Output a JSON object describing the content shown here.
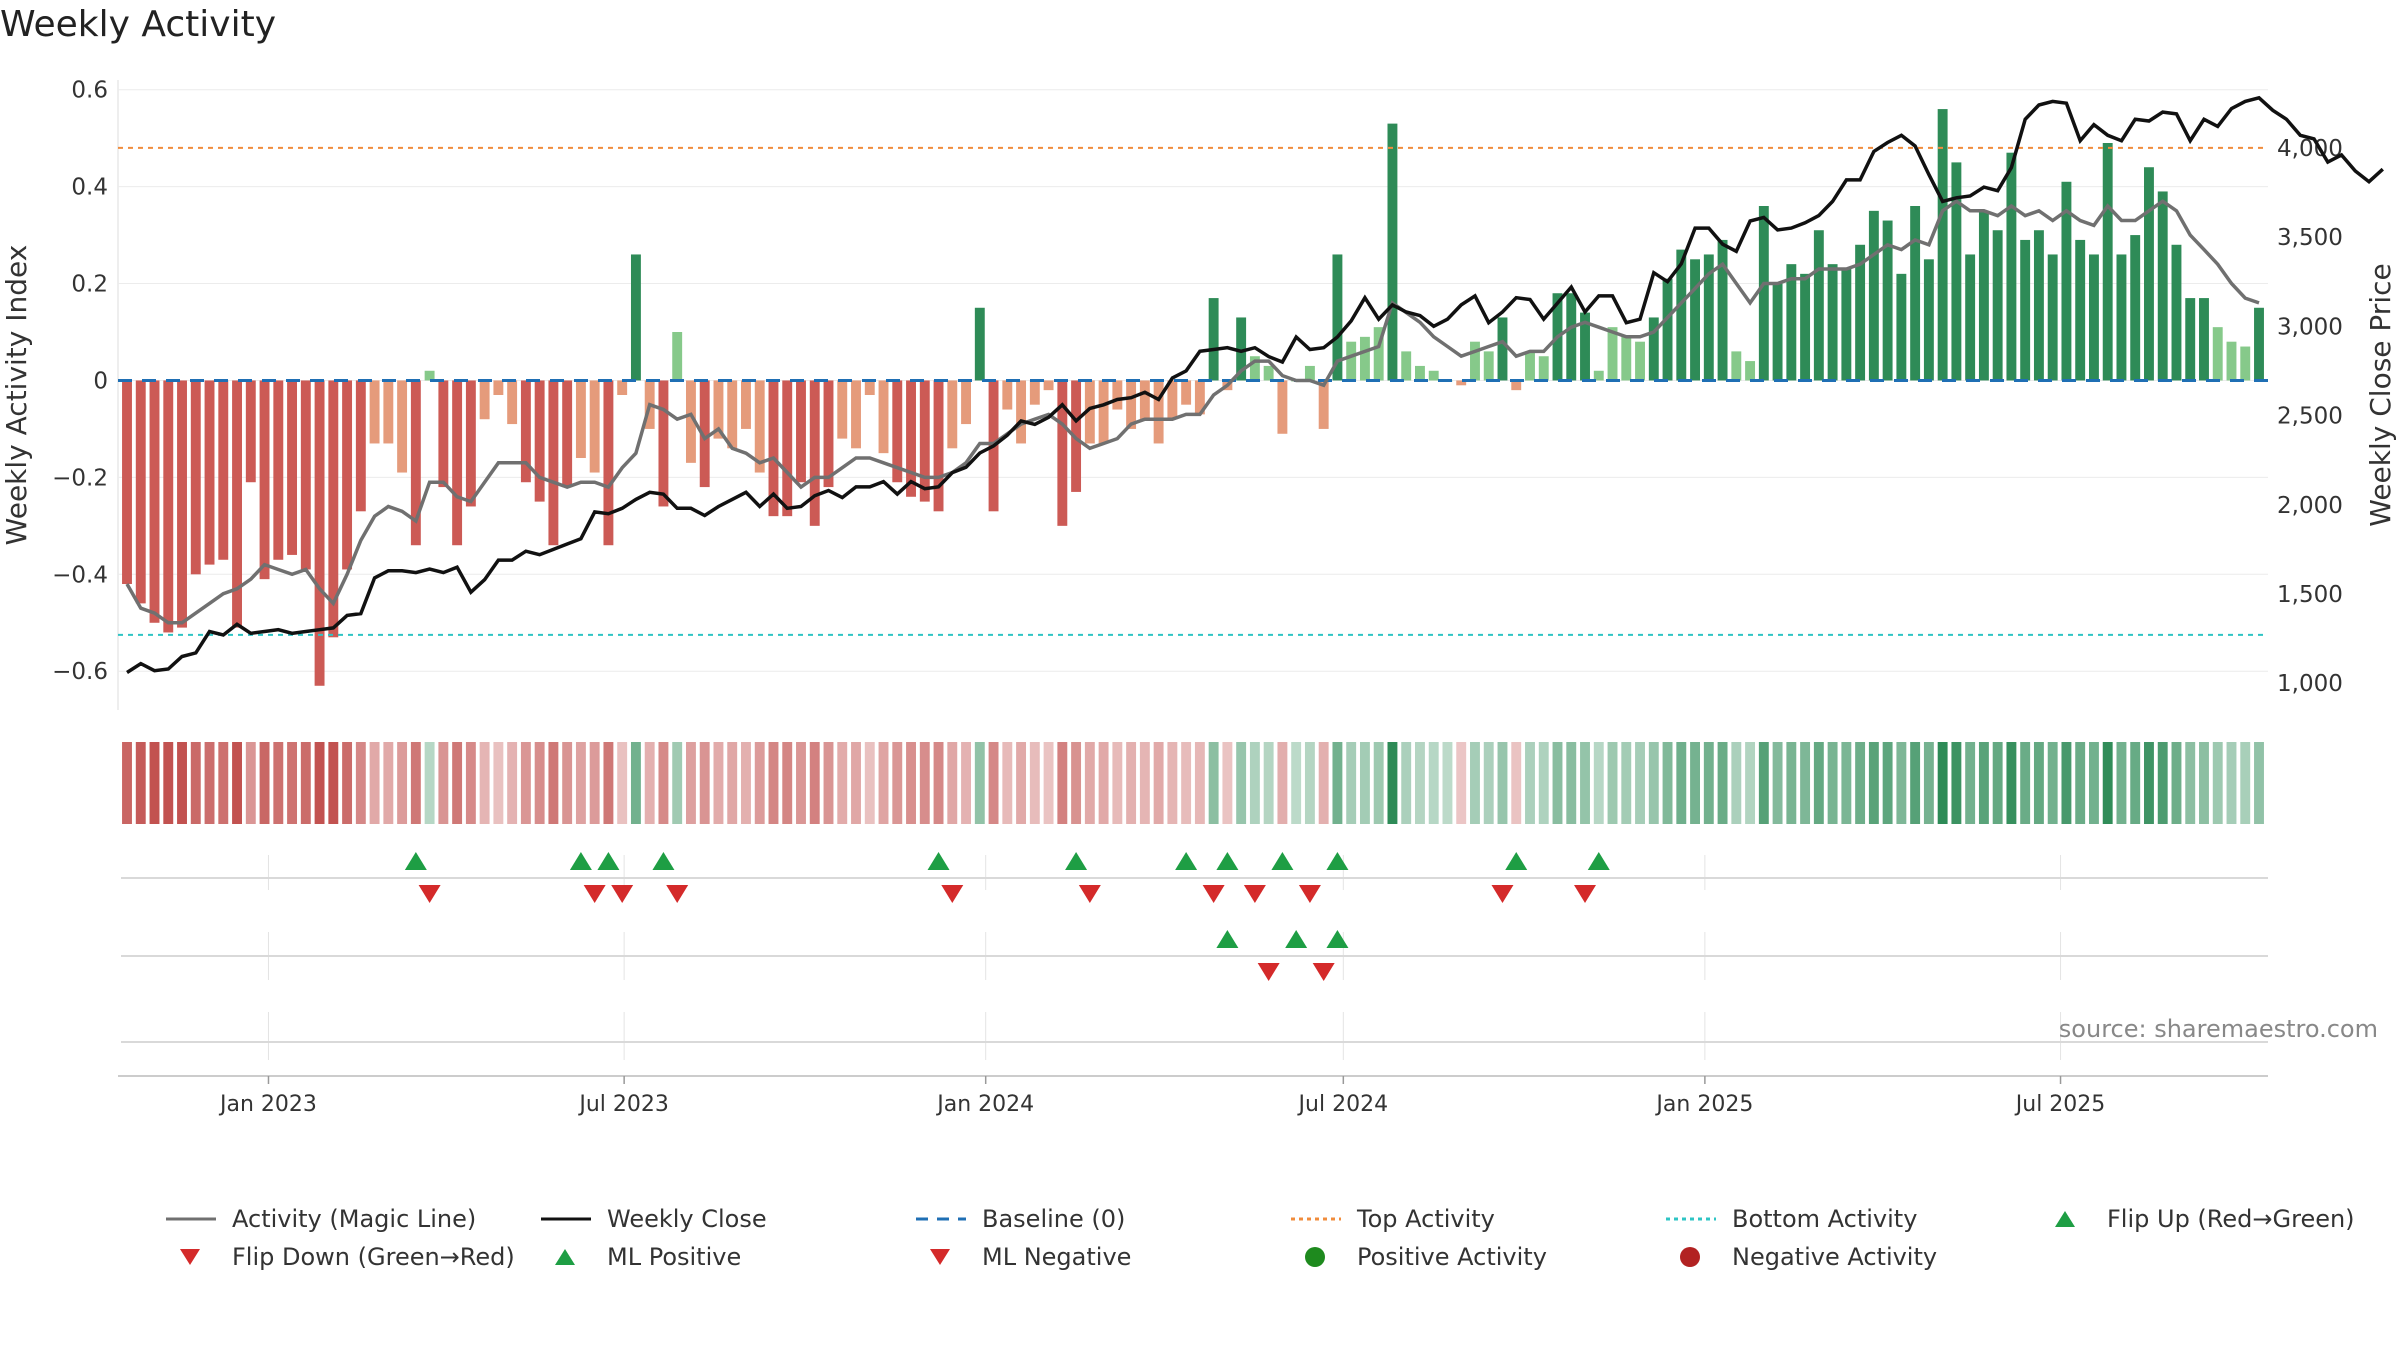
{
  "chart_data": {
    "type": "bar",
    "title": "Weekly Activity",
    "ylabel_left": "Weekly Activity Index",
    "ylabel_right": "Weekly Close Price",
    "xlabel": "",
    "x_start": "2022-10-21",
    "x_step_days": 7,
    "ylim_left": [
      -0.68,
      0.62
    ],
    "yticks_left": [
      -0.6,
      -0.4,
      -0.2,
      0,
      0.2,
      0.4,
      0.6
    ],
    "ylim_right": [
      850,
      4380
    ],
    "yticks_right": [
      1000,
      1500,
      2000,
      2500,
      3000,
      3500,
      4000
    ],
    "xticks": [
      {
        "date": "2023-01-01",
        "label": "Jan 2023"
      },
      {
        "date": "2023-07-01",
        "label": "Jul 2023"
      },
      {
        "date": "2024-01-01",
        "label": "Jan 2024"
      },
      {
        "date": "2024-07-01",
        "label": "Jul 2024"
      },
      {
        "date": "2025-01-01",
        "label": "Jan 2025"
      },
      {
        "date": "2025-07-01",
        "label": "Jul 2025"
      }
    ],
    "activity": [
      -0.42,
      -0.46,
      -0.5,
      -0.52,
      -0.51,
      -0.4,
      -0.38,
      -0.37,
      -0.51,
      -0.21,
      -0.41,
      -0.37,
      -0.36,
      -0.39,
      -0.63,
      -0.53,
      -0.39,
      -0.27,
      -0.13,
      -0.13,
      -0.19,
      -0.34,
      0.02,
      -0.22,
      -0.34,
      -0.26,
      -0.08,
      -0.03,
      -0.09,
      -0.21,
      -0.25,
      -0.34,
      -0.22,
      -0.16,
      -0.19,
      -0.34,
      -0.03,
      0.26,
      -0.1,
      -0.26,
      0.1,
      -0.17,
      -0.22,
      -0.12,
      -0.14,
      -0.1,
      -0.19,
      -0.28,
      -0.28,
      -0.21,
      -0.3,
      -0.22,
      -0.12,
      -0.14,
      -0.03,
      -0.15,
      -0.21,
      -0.24,
      -0.25,
      -0.27,
      -0.14,
      -0.09,
      0.15,
      -0.27,
      -0.06,
      -0.13,
      -0.05,
      -0.02,
      -0.3,
      -0.23,
      -0.13,
      -0.13,
      -0.06,
      -0.1,
      -0.08,
      -0.13,
      -0.08,
      -0.05,
      -0.07,
      0.17,
      -0.02,
      0.13,
      0.05,
      0.03,
      -0.11,
      0.0,
      0.03,
      -0.1,
      0.26,
      0.08,
      0.09,
      0.11,
      0.53,
      0.06,
      0.03,
      0.02,
      0.0,
      -0.01,
      0.08,
      0.06,
      0.13,
      -0.02,
      0.06,
      0.05,
      0.18,
      0.18,
      0.14,
      0.02,
      0.11,
      0.09,
      0.08,
      0.13,
      0.21,
      0.27,
      0.25,
      0.26,
      0.29,
      0.06,
      0.04,
      0.36,
      0.2,
      0.24,
      0.22,
      0.31,
      0.24,
      0.23,
      0.28,
      0.35,
      0.33,
      0.22,
      0.36,
      0.25,
      0.56,
      0.45,
      0.26,
      0.35,
      0.31,
      0.47,
      0.29,
      0.31,
      0.26,
      0.41,
      0.29,
      0.26,
      0.49,
      0.26,
      0.3,
      0.44,
      0.39,
      0.28,
      0.17,
      0.17,
      0.11,
      0.08,
      0.07,
      0.15
    ],
    "magic_line": [
      -0.42,
      -0.47,
      -0.48,
      -0.5,
      -0.5,
      -0.48,
      -0.46,
      -0.44,
      -0.43,
      -0.41,
      -0.38,
      -0.39,
      -0.4,
      -0.39,
      -0.43,
      -0.46,
      -0.4,
      -0.33,
      -0.28,
      -0.26,
      -0.27,
      -0.29,
      -0.21,
      -0.21,
      -0.24,
      -0.25,
      -0.21,
      -0.17,
      -0.17,
      -0.17,
      -0.2,
      -0.21,
      -0.22,
      -0.21,
      -0.21,
      -0.22,
      -0.18,
      -0.15,
      -0.05,
      -0.06,
      -0.08,
      -0.07,
      -0.12,
      -0.1,
      -0.14,
      -0.15,
      -0.17,
      -0.16,
      -0.19,
      -0.22,
      -0.2,
      -0.2,
      -0.18,
      -0.16,
      -0.16,
      -0.17,
      -0.18,
      -0.19,
      -0.2,
      -0.2,
      -0.19,
      -0.17,
      -0.13,
      -0.13,
      -0.11,
      -0.09,
      -0.08,
      -0.07,
      -0.09,
      -0.12,
      -0.14,
      -0.13,
      -0.12,
      -0.09,
      -0.08,
      -0.08,
      -0.08,
      -0.07,
      -0.07,
      -0.03,
      -0.01,
      0.02,
      0.04,
      0.04,
      0.01,
      0.0,
      0.0,
      -0.01,
      0.04,
      0.05,
      0.06,
      0.07,
      0.16,
      0.14,
      0.12,
      0.09,
      0.07,
      0.05,
      0.06,
      0.07,
      0.08,
      0.05,
      0.06,
      0.06,
      0.09,
      0.11,
      0.12,
      0.11,
      0.1,
      0.09,
      0.09,
      0.1,
      0.13,
      0.16,
      0.19,
      0.22,
      0.24,
      0.2,
      0.16,
      0.2,
      0.2,
      0.21,
      0.21,
      0.23,
      0.23,
      0.23,
      0.24,
      0.26,
      0.28,
      0.27,
      0.29,
      0.28,
      0.35,
      0.37,
      0.35,
      0.35,
      0.34,
      0.36,
      0.34,
      0.35,
      0.33,
      0.35,
      0.33,
      0.32,
      0.36,
      0.33,
      0.33,
      0.35,
      0.37,
      0.35,
      0.3,
      0.27,
      0.24,
      0.2,
      0.17,
      0.16
    ],
    "weekly_close": [
      1060,
      1110,
      1070,
      1080,
      1150,
      1170,
      1290,
      1270,
      1330,
      1280,
      1290,
      1300,
      1280,
      1290,
      1300,
      1310,
      1380,
      1390,
      1590,
      1630,
      1630,
      1620,
      1640,
      1620,
      1650,
      1510,
      1580,
      1690,
      1690,
      1740,
      1720,
      1750,
      1780,
      1810,
      1960,
      1950,
      1980,
      2030,
      2070,
      2060,
      1980,
      1980,
      1940,
      1990,
      2030,
      2070,
      1990,
      2060,
      1980,
      1990,
      2050,
      2080,
      2040,
      2100,
      2100,
      2130,
      2060,
      2130,
      2090,
      2100,
      2180,
      2210,
      2290,
      2330,
      2390,
      2470,
      2450,
      2490,
      2560,
      2470,
      2540,
      2560,
      2590,
      2600,
      2630,
      2590,
      2710,
      2750,
      2860,
      2870,
      2880,
      2860,
      2880,
      2830,
      2800,
      2940,
      2870,
      2880,
      2940,
      3030,
      3160,
      3040,
      3120,
      3080,
      3060,
      3000,
      3040,
      3120,
      3170,
      3020,
      3080,
      3160,
      3150,
      3040,
      3130,
      3220,
      3080,
      3170,
      3170,
      3020,
      3040,
      3300,
      3250,
      3350,
      3550,
      3550,
      3460,
      3420,
      3590,
      3610,
      3540,
      3550,
      3580,
      3620,
      3700,
      3820,
      3820,
      3980,
      4030,
      4070,
      4010,
      3850,
      3700,
      3720,
      3730,
      3780,
      3760,
      3890,
      4160,
      4240,
      4260,
      4250,
      4040,
      4130,
      4070,
      4040,
      4160,
      4150,
      4200,
      4190,
      4040,
      4160,
      4120,
      4220,
      4260,
      4280,
      4210,
      4160,
      4070,
      4050,
      3920,
      3960,
      3870,
      3810,
      3880
    ],
    "top_activity": 0.48,
    "bottom_activity": -0.525,
    "baseline": 0,
    "flip_up_idx": [
      21,
      33,
      35,
      39,
      59,
      69,
      77,
      80,
      84,
      88,
      101,
      107
    ],
    "flip_down_idx": [
      22,
      34,
      36,
      40,
      60,
      70,
      79,
      82,
      86,
      100,
      106
    ],
    "ml_positive_idx": [
      80,
      85,
      88
    ],
    "ml_negative_idx": [
      83,
      87
    ],
    "colors": {
      "strong_negative": "#cc5a55",
      "weak_negative": "#e59b7b",
      "strong_positive": "#2e8b57",
      "weak_positive": "#86c98a",
      "magic_line": "#707070",
      "weekly_close": "#111111",
      "baseline": "#1f6fb4",
      "top_activity": "#f08c3c",
      "bottom_activity": "#2ec4c4",
      "flip_up": "#1e9e44",
      "flip_down": "#d42a2a",
      "positive_dot": "#1e8a1e",
      "negative_dot": "#b22222"
    }
  },
  "source": "source: sharemaestro.com",
  "legend": [
    {
      "label": "Activity (Magic Line)",
      "icon": "line-solid",
      "color": "#707070"
    },
    {
      "label": "Weekly Close",
      "icon": "line-solid",
      "color": "#111111"
    },
    {
      "label": "Baseline (0)",
      "icon": "line-dashed",
      "color": "#1f6fb4"
    },
    {
      "label": "Top Activity",
      "icon": "line-dotted",
      "color": "#f08c3c"
    },
    {
      "label": "Bottom Activity",
      "icon": "line-dotted",
      "color": "#2ec4c4"
    },
    {
      "label": "Flip Up (Red→Green)",
      "icon": "triangle-up",
      "color": "#1e9e44"
    },
    {
      "label": "Flip Down (Green→Red)",
      "icon": "triangle-down",
      "color": "#d42a2a"
    },
    {
      "label": "ML Positive",
      "icon": "triangle-up",
      "color": "#1e9e44"
    },
    {
      "label": "ML Negative",
      "icon": "triangle-down",
      "color": "#d42a2a"
    },
    {
      "label": "Positive Activity",
      "icon": "circle",
      "color": "#1e8a1e"
    },
    {
      "label": "Negative Activity",
      "icon": "circle",
      "color": "#b22222"
    }
  ]
}
